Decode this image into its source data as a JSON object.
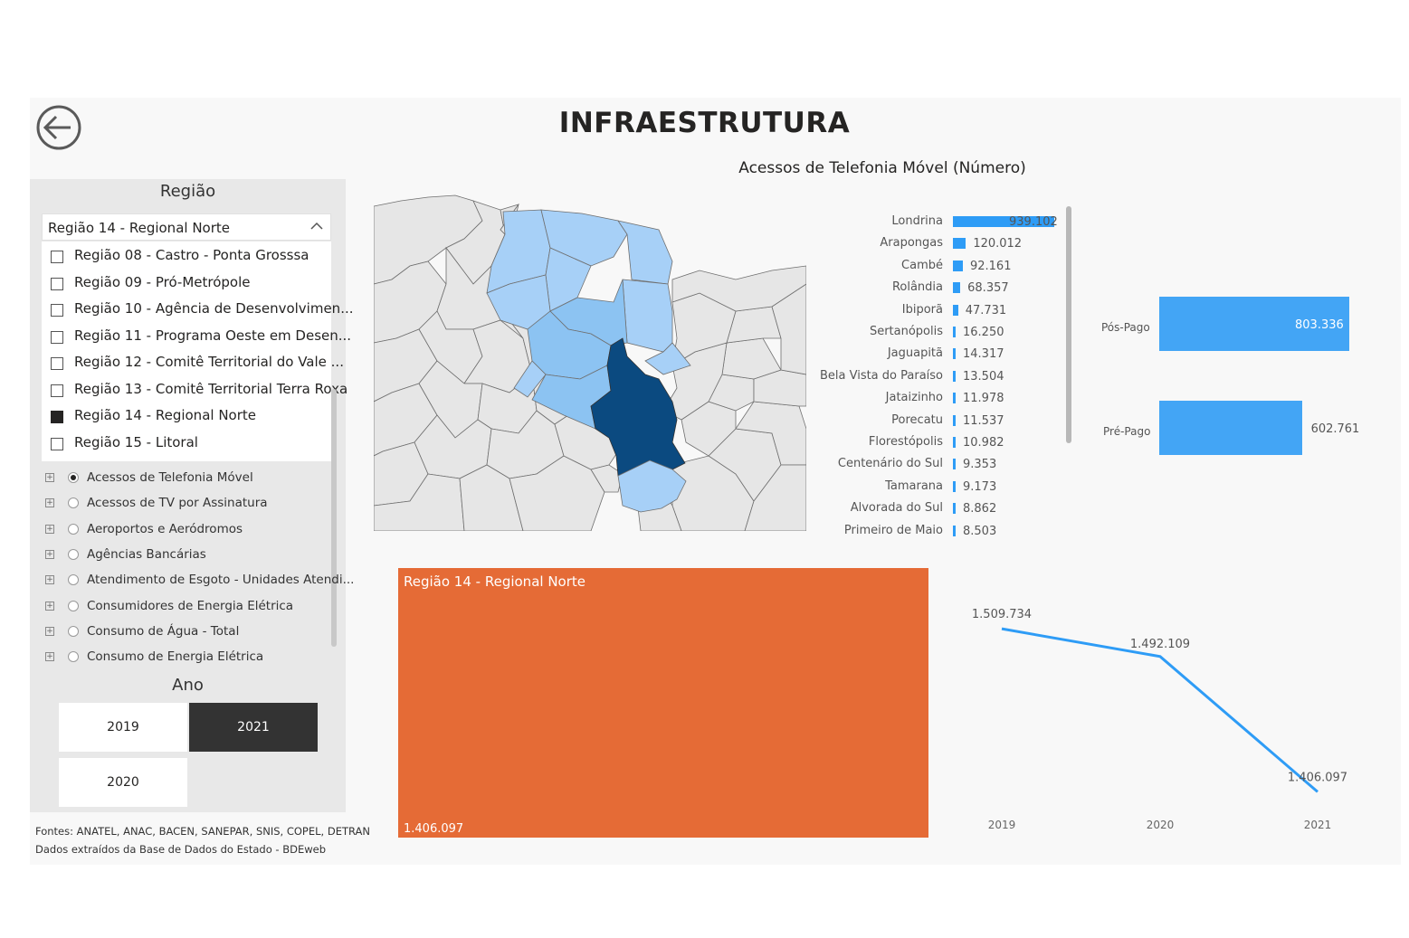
{
  "header": {
    "title": "INFRAESTRUTURA"
  },
  "chart_title": "Acessos de Telefonia Móvel (Número)",
  "region_slicer": {
    "heading": "Região",
    "selected": "Região 14 - Regional Norte",
    "items": [
      {
        "label": "Região 08 - Castro - Ponta Grosssa",
        "checked": false
      },
      {
        "label": "Região 09 - Pró-Metrópole",
        "checked": false
      },
      {
        "label": "Região 10 - Agência de Desenvolvimen...",
        "checked": false
      },
      {
        "label": "Região 11 - Programa Oeste em Desen...",
        "checked": false
      },
      {
        "label": "Região 12 - Comitê Territorial do Vale ...",
        "checked": false
      },
      {
        "label": "Região 13 - Comitê Territorial Terra Roxa",
        "checked": false
      },
      {
        "label": "Região 14 - Regional Norte",
        "checked": true
      },
      {
        "label": "Região 15 - Litoral",
        "checked": false
      }
    ]
  },
  "indicators": [
    {
      "label": "Acessos de Telefonia Móvel",
      "selected": true
    },
    {
      "label": "Acessos de TV por Assinatura",
      "selected": false
    },
    {
      "label": "Aeroportos e Aeródromos",
      "selected": false
    },
    {
      "label": "Agências Bancárias",
      "selected": false
    },
    {
      "label": "Atendimento de Esgoto - Unidades Atendi...",
      "selected": false
    },
    {
      "label": "Consumidores de Energia Elétrica",
      "selected": false
    },
    {
      "label": "Consumo de Água - Total",
      "selected": false
    },
    {
      "label": "Consumo de Energia Elétrica",
      "selected": false
    }
  ],
  "year_slicer": {
    "heading": "Ano",
    "years": [
      {
        "label": "2019",
        "selected": false
      },
      {
        "label": "2021",
        "selected": true
      },
      {
        "label": "2020",
        "selected": false
      }
    ]
  },
  "sources": {
    "line1": "Fontes: ANATEL, ANAC, BACEN, SANEPAR, SNIS, COPEL, DETRAN",
    "line2": "Dados extraídos da Base de Dados do Estado - BDEweb"
  },
  "colors": {
    "accent_blue": "#2e9cf6",
    "treemap_orange": "#e56b36",
    "selected_dark": "#333333",
    "map_dark": "#0b4a80",
    "map_mid": "#8cc3f2",
    "map_light": "#a7d0f7"
  },
  "chart_data": [
    {
      "type": "bar",
      "orientation": "horizontal",
      "categories": [
        "Londrina",
        "Arapongas",
        "Cambé",
        "Rolândia",
        "Ibiporã",
        "Sertanópolis",
        "Jaguapitã",
        "Bela Vista do Paraíso",
        "Jataizinho",
        "Porecatu",
        "Florestópolis",
        "Centenário do Sul",
        "Tamarana",
        "Alvorada do Sul",
        "Primeiro de Maio"
      ],
      "values": [
        939102,
        120012,
        92161,
        68357,
        47731,
        16250,
        14317,
        13504,
        11978,
        11537,
        10982,
        9353,
        9173,
        8862,
        8503
      ],
      "value_labels": [
        "939.102",
        "120.012",
        "92.161",
        "68.357",
        "47.731",
        "16.250",
        "14.317",
        "13.504",
        "11.978",
        "11.537",
        "10.982",
        "9.353",
        "9.173",
        "8.862",
        "8.503"
      ]
    },
    {
      "type": "bar",
      "orientation": "horizontal",
      "categories": [
        "Pós-Pago",
        "Pré-Pago"
      ],
      "values": [
        803336,
        602761
      ],
      "value_labels": [
        "803.336",
        "602.761"
      ]
    },
    {
      "type": "treemap",
      "categories": [
        "Região 14 - Regional Norte"
      ],
      "values": [
        1406097
      ],
      "value_labels": [
        "1.406.097"
      ]
    },
    {
      "type": "line",
      "x": [
        "2019",
        "2020",
        "2021"
      ],
      "values": [
        1509734,
        1492109,
        1406097
      ],
      "value_labels": [
        "1.509.734",
        "1.492.109",
        "1.406.097"
      ]
    }
  ]
}
